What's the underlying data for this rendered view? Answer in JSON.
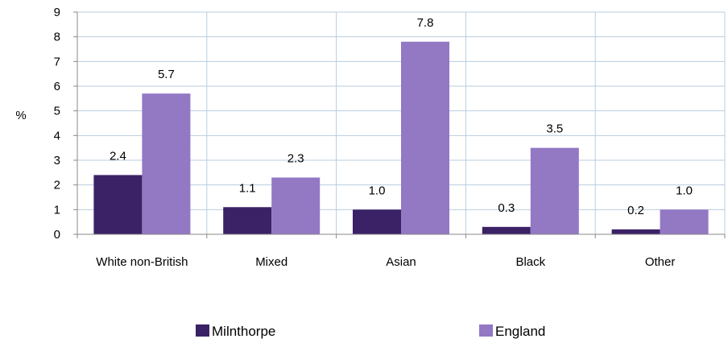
{
  "chart_data": {
    "type": "bar",
    "title": "",
    "xlabel": "",
    "ylabel": "%",
    "ylim": [
      0,
      9
    ],
    "yticks": [
      "0",
      "1",
      "2",
      "3",
      "4",
      "5",
      "6",
      "7",
      "8",
      "9"
    ],
    "grid": true,
    "legend_position": "bottom",
    "categories": [
      "White non-British",
      "Mixed",
      "Asian",
      "Black",
      "Other"
    ],
    "series": [
      {
        "name": "Milnthorpe",
        "color": "#3b2266",
        "values": [
          2.4,
          1.1,
          1.0,
          0.3,
          0.2
        ],
        "labels": [
          "2.4",
          "1.1",
          "1.0",
          "0.3",
          "0.2"
        ]
      },
      {
        "name": "England",
        "color": "#9378c4",
        "values": [
          5.7,
          2.3,
          7.8,
          3.5,
          1.0
        ],
        "labels": [
          "5.7",
          "2.3",
          "7.8",
          "3.5",
          "1.0"
        ]
      }
    ]
  }
}
